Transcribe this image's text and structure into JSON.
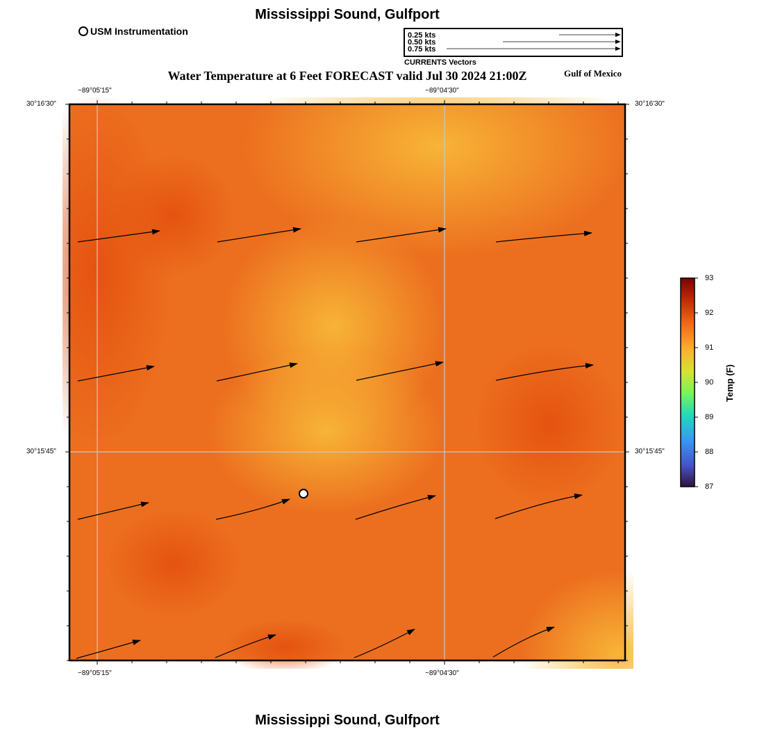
{
  "title": "Mississippi Sound, Gulfport",
  "subtitle": "Water Temperature at 6 Feet FORECAST valid Jul 30 2024 21:00Z",
  "region_label": "Gulf of Mexico",
  "station_legend": "USM Instrumentation",
  "vector_legend": {
    "caption": "CURRENTS Vectors",
    "entries": [
      "0.25 kts",
      "0.50 kts",
      "0.75 kts"
    ]
  },
  "axes": {
    "lon_labels": [
      "−89°05'15\"",
      "−89°04'30\""
    ],
    "lat_labels": [
      "30°16'30\"",
      "30°15'45\""
    ]
  },
  "colorbar": {
    "title": "Temp (F)",
    "ticks": [
      "93",
      "92",
      "91",
      "90",
      "89",
      "88",
      "87"
    ],
    "min": 87,
    "max": 93
  },
  "colors": {
    "field_base": "#ec6f1f",
    "field_warm": "#e4500f",
    "field_cool": "#f6b236",
    "arrow": "#000000",
    "grid": "#c8c8c8"
  }
}
